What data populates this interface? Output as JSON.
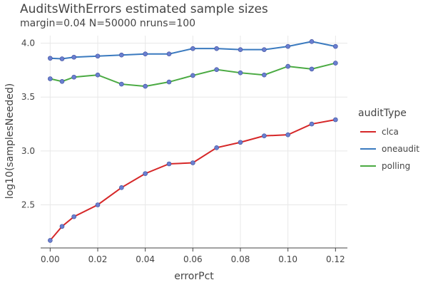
{
  "chart_data": {
    "type": "line",
    "title": "AuditsWithErrors estimated sample sizes",
    "subtitle": "margin=0.04 N=50000 nruns=100",
    "xlabel": "errorPct",
    "ylabel": "log10(samplesNeeded)",
    "xlim": [
      -0.004,
      0.125
    ],
    "ylim": [
      2.1,
      4.07
    ],
    "xticks": [
      "0.00",
      "0.02",
      "0.04",
      "0.06",
      "0.08",
      "0.10",
      "0.12"
    ],
    "yticks": [
      "2.5",
      "3.0",
      "3.5",
      "4.0"
    ],
    "grid": true,
    "legend_title": "auditType",
    "legend_position": "right",
    "x": [
      0.0,
      0.005,
      0.01,
      0.02,
      0.03,
      0.04,
      0.05,
      0.06,
      0.07,
      0.08,
      0.09,
      0.1,
      0.11,
      0.12
    ],
    "series": [
      {
        "name": "clca",
        "color": "#d62728",
        "values": [
          2.17,
          2.3,
          2.39,
          2.5,
          2.66,
          2.79,
          2.88,
          2.89,
          3.03,
          3.08,
          3.14,
          3.15,
          3.25,
          3.29
        ]
      },
      {
        "name": "oneaudit",
        "color": "#3a7abf",
        "values": [
          3.86,
          3.855,
          3.87,
          3.88,
          3.89,
          3.9,
          3.9,
          3.95,
          3.95,
          3.94,
          3.94,
          3.97,
          4.015,
          3.97
        ]
      },
      {
        "name": "polling",
        "color": "#4aaa42",
        "values": [
          3.67,
          3.645,
          3.685,
          3.705,
          3.62,
          3.6,
          3.64,
          3.7,
          3.755,
          3.725,
          3.705,
          3.785,
          3.76,
          3.815
        ]
      }
    ],
    "marker_color": "#6a7fd0"
  }
}
